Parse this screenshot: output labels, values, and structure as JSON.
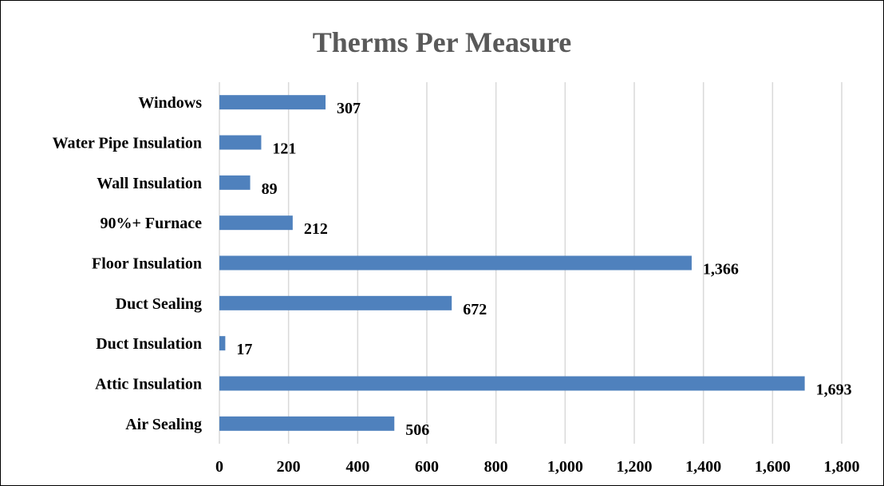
{
  "chart_data": {
    "type": "bar",
    "orientation": "horizontal",
    "title": "Therms Per Measure",
    "categories": [
      "Windows",
      "Water Pipe Insulation",
      "Wall Insulation",
      "90%+ Furnace",
      "Floor Insulation",
      "Duct Sealing",
      "Duct Insulation",
      "Attic Insulation",
      "Air Sealing"
    ],
    "values": [
      307,
      121,
      89,
      212,
      1366,
      672,
      17,
      1693,
      506
    ],
    "data_labels": [
      "307",
      "121",
      "89",
      "212",
      "1,366",
      "672",
      "17",
      "1,693",
      "506"
    ],
    "xlim": [
      0,
      1800
    ],
    "x_ticks": [
      0,
      200,
      400,
      600,
      800,
      1000,
      1200,
      1400,
      1600,
      1800
    ],
    "x_tick_labels": [
      "0",
      "200",
      "400",
      "600",
      "800",
      "1,000",
      "1,200",
      "1,400",
      "1,600",
      "1,800"
    ],
    "xlabel": "",
    "ylabel": "",
    "grid": true,
    "legend": "none",
    "colors": {
      "bar": "#4f81bd",
      "title": "#595959",
      "gridline": "#d9d9d9",
      "text": "#000000"
    }
  }
}
